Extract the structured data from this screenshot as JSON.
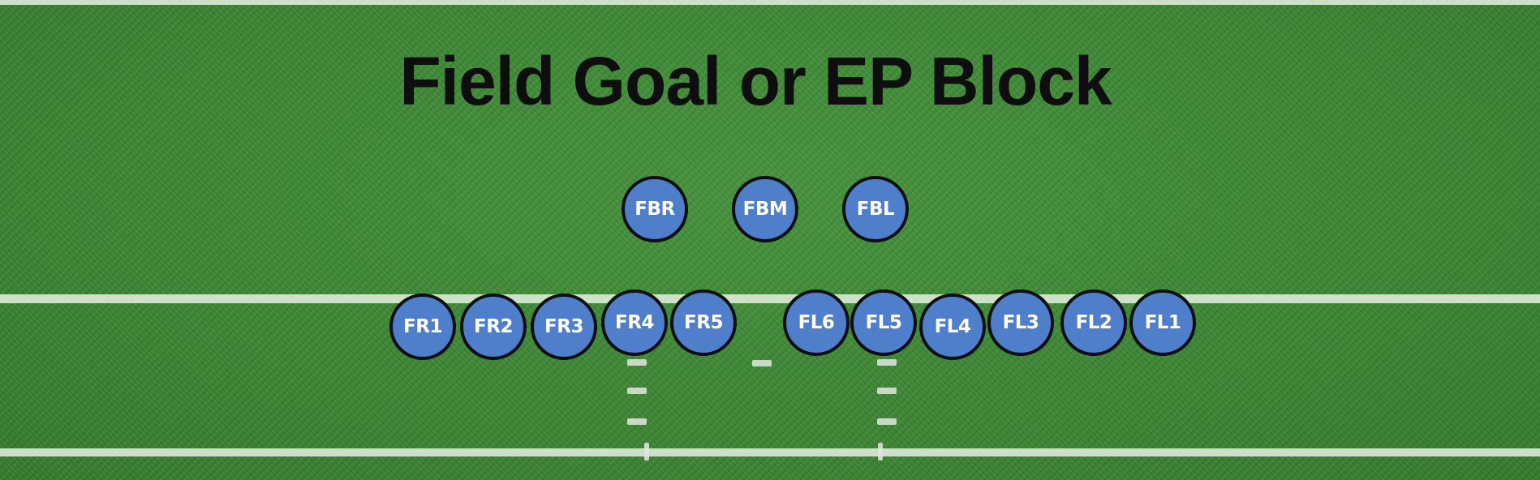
{
  "title": "Field Goal or EP Block",
  "colors": {
    "field": "#3e8a36",
    "player_fill": "#4f7fcb",
    "player_border": "#0d0f12",
    "title": "#0e0e0e"
  },
  "players": {
    "back_row": [
      "FBR",
      "FBM",
      "FBL"
    ],
    "front_row": [
      "FR1",
      "FR2",
      "FR3",
      "FR4",
      "FR5",
      "FL6",
      "FL5",
      "FL4",
      "FL3",
      "FL2",
      "FL1"
    ]
  }
}
